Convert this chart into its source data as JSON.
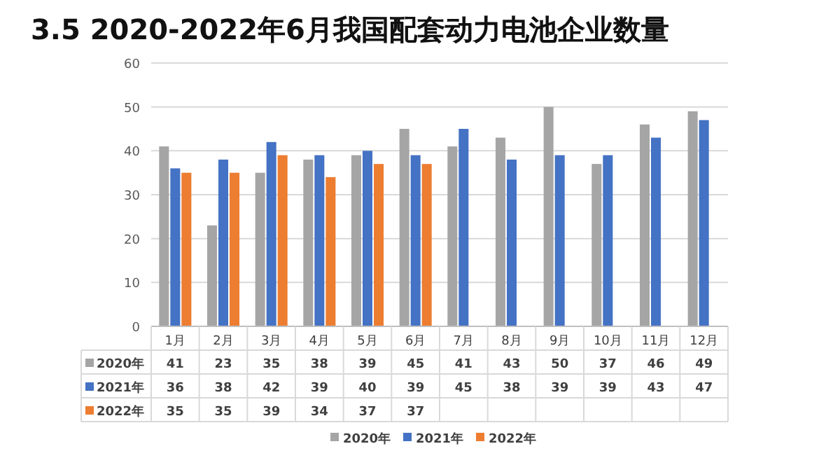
{
  "chart_data": {
    "type": "bar",
    "title": "3.5 2020-2022年6月我国配套动力电池企业数量",
    "categories": [
      "1月",
      "2月",
      "3月",
      "4月",
      "5月",
      "6月",
      "7月",
      "8月",
      "9月",
      "10月",
      "11月",
      "12月"
    ],
    "series": [
      {
        "name": "2020年",
        "color": "#a5a5a5",
        "values": [
          41,
          23,
          35,
          38,
          39,
          45,
          41,
          43,
          50,
          37,
          46,
          49
        ]
      },
      {
        "name": "2021年",
        "color": "#4472c4",
        "values": [
          36,
          38,
          42,
          39,
          40,
          39,
          45,
          38,
          39,
          39,
          43,
          47
        ]
      },
      {
        "name": "2022年",
        "color": "#ed7d31",
        "values": [
          35,
          35,
          39,
          34,
          37,
          37,
          null,
          null,
          null,
          null,
          null,
          null
        ]
      }
    ],
    "ylim": [
      0,
      60
    ],
    "yticks": [
      0,
      10,
      20,
      30,
      40,
      50,
      60
    ],
    "grid": "y",
    "legend": "bottom",
    "data_labels": true
  }
}
